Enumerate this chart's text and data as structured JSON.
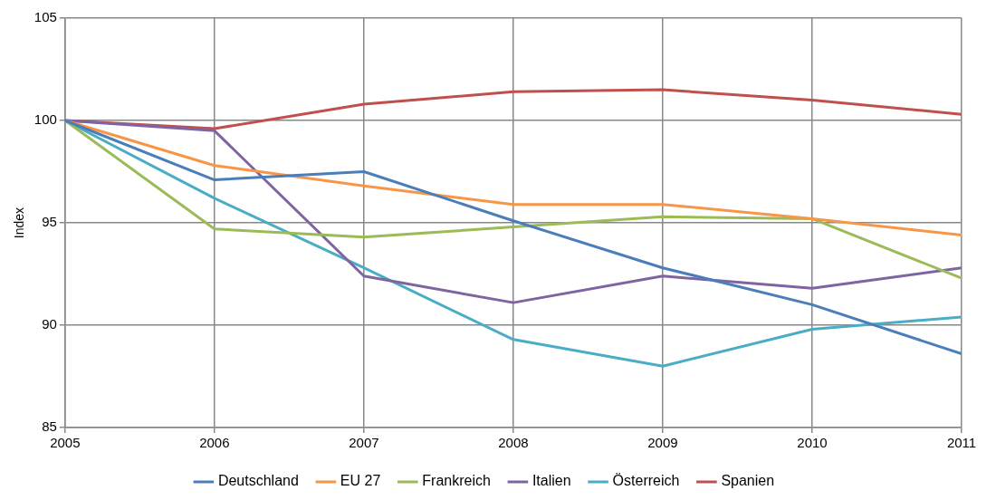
{
  "chart_data": {
    "type": "line",
    "ylabel": "Index",
    "x": [
      2005,
      2006,
      2007,
      2008,
      2009,
      2010,
      2011
    ],
    "xlim": [
      2005,
      2011
    ],
    "xticks": [
      2005,
      2006,
      2007,
      2008,
      2009,
      2010,
      2011
    ],
    "ylim": [
      85,
      105
    ],
    "yticks": [
      85,
      90,
      95,
      100,
      105
    ],
    "grid": true,
    "legend": "bottom",
    "marker": "none",
    "line_style": "solid",
    "series": [
      {
        "name": "Deutschland",
        "color": "#4a7ebb",
        "values": [
          100,
          97.1,
          97.5,
          95.1,
          92.8,
          91.0,
          88.6
        ]
      },
      {
        "name": "EU 27",
        "color": "#f79646",
        "values": [
          100,
          97.8,
          96.8,
          95.9,
          95.9,
          95.2,
          94.4
        ]
      },
      {
        "name": "Frankreich",
        "color": "#9bbb59",
        "values": [
          100,
          94.7,
          94.3,
          94.8,
          95.3,
          95.2,
          92.3
        ]
      },
      {
        "name": "Italien",
        "color": "#8064a2",
        "values": [
          100,
          99.5,
          92.4,
          91.1,
          92.4,
          91.8,
          92.8
        ]
      },
      {
        "name": "Österreich",
        "color": "#4bacc6",
        "values": [
          100,
          96.2,
          92.8,
          89.3,
          88.0,
          89.8,
          90.4
        ]
      },
      {
        "name": "Spanien",
        "color": "#c0504d",
        "values": [
          100,
          99.6,
          100.8,
          101.4,
          101.5,
          101.0,
          100.3
        ]
      }
    ]
  }
}
